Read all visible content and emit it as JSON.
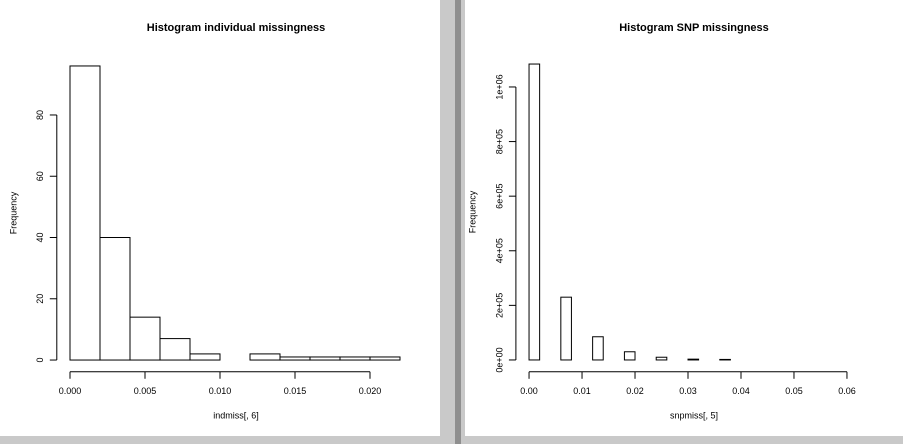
{
  "chart_data": [
    {
      "type": "histogram",
      "title": "Histogram individual missingness",
      "xlabel": "indmiss[, 6]",
      "ylabel": "Frequency",
      "bins": [
        0,
        0.002,
        0.004,
        0.006,
        0.008,
        0.01,
        0.012,
        0.014,
        0.016,
        0.018,
        0.02,
        0.022
      ],
      "values": [
        96,
        40,
        14,
        7,
        2,
        0,
        2,
        1,
        1,
        1,
        1
      ],
      "xlim": [
        0,
        0.022
      ],
      "ylim": [
        0,
        96
      ],
      "xticks": [
        {
          "value": 0,
          "label": "0.000"
        },
        0.005,
        {
          "value": 0.01,
          "label": "0.010"
        },
        0.015,
        {
          "value": 0.02,
          "label": "0.020"
        }
      ],
      "yticks": [
        0,
        20,
        40,
        60,
        80
      ],
      "color": "#ffffff"
    },
    {
      "type": "histogram",
      "title": "Histogram SNP missingness",
      "xlabel": "snpmiss[, 5]",
      "ylabel": "Frequency",
      "bins": [
        0,
        0.002,
        0.004,
        0.006,
        0.008,
        0.01,
        0.012,
        0.014,
        0.016,
        0.018,
        0.02,
        0.022,
        0.024,
        0.026,
        0.028,
        0.03,
        0.032,
        0.034,
        0.036,
        0.038,
        0.04,
        0.042,
        0.044,
        0.046,
        0.048,
        0.05,
        0.052,
        0.054,
        0.056,
        0.058,
        0.06,
        0.062
      ],
      "values": [
        1084000,
        0,
        0,
        230000,
        0,
        0,
        85000,
        0,
        0,
        30000,
        0,
        0,
        10000,
        0,
        0,
        3000,
        0,
        0,
        2000,
        0,
        0,
        0,
        0,
        0,
        0,
        0,
        0,
        0,
        0,
        0,
        0
      ],
      "xlim": [
        0,
        0.062
      ],
      "ylim": [
        0,
        1084000
      ],
      "xticks": [
        {
          "value": 0,
          "label": "0.00"
        },
        0.01,
        0.02,
        0.03,
        0.04,
        0.05,
        0.06
      ],
      "yticks": [
        {
          "value": 0,
          "label": "0e+00"
        },
        {
          "value": 200000,
          "label": "2e+05"
        },
        {
          "value": 400000,
          "label": "4e+05"
        },
        {
          "value": 600000,
          "label": "6e+05"
        },
        {
          "value": 800000,
          "label": "8e+05"
        },
        {
          "value": 1000000,
          "label": "1e+06"
        }
      ],
      "color": "#ffffff"
    }
  ]
}
